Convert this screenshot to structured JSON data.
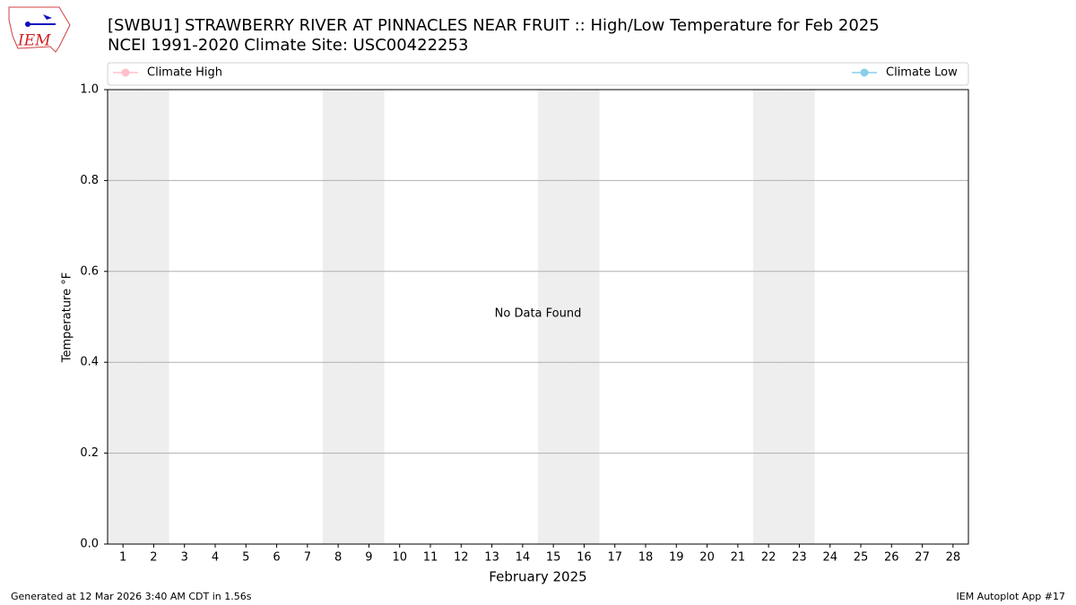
{
  "logo": {
    "text": "IEM"
  },
  "chart_data": {
    "type": "line",
    "title": "[SWBU1] STRAWBERRY RIVER AT PINNACLES NEAR FRUIT :: High/Low Temperature for Feb 2025",
    "subtitle": "NCEI 1991-2020 Climate Site: USC00422253",
    "xlabel": "February 2025",
    "ylabel": "Temperature °F",
    "annotation": "No Data Found",
    "categories": [
      "1",
      "2",
      "3",
      "4",
      "5",
      "6",
      "7",
      "8",
      "9",
      "10",
      "11",
      "12",
      "13",
      "14",
      "15",
      "16",
      "17",
      "18",
      "19",
      "20",
      "21",
      "22",
      "23",
      "24",
      "25",
      "26",
      "27",
      "28"
    ],
    "series": [
      {
        "name": "Climate High",
        "color": "#ffc0cb",
        "values": [
          null,
          null,
          null,
          null,
          null,
          null,
          null,
          null,
          null,
          null,
          null,
          null,
          null,
          null,
          null,
          null,
          null,
          null,
          null,
          null,
          null,
          null,
          null,
          null,
          null,
          null,
          null,
          null
        ]
      },
      {
        "name": "Climate Low",
        "color": "#87ceeb",
        "values": [
          null,
          null,
          null,
          null,
          null,
          null,
          null,
          null,
          null,
          null,
          null,
          null,
          null,
          null,
          null,
          null,
          null,
          null,
          null,
          null,
          null,
          null,
          null,
          null,
          null,
          null,
          null,
          null
        ]
      }
    ],
    "ylim": [
      0,
      1
    ],
    "yticks": [
      {
        "value": 0,
        "label": "0.0"
      },
      0.2,
      0.4,
      0.6,
      0.8,
      {
        "value": 1,
        "label": "1.0"
      }
    ],
    "grid": true,
    "legend": "top",
    "shaded_days": [
      1,
      2,
      8,
      9,
      15,
      16,
      22,
      23
    ],
    "shade_color": "#eeeeee",
    "footer_left": "Generated at 12 Mar 2026 3:40 AM CDT in 1.56s",
    "footer_right": "IEM Autoplot App #17"
  }
}
